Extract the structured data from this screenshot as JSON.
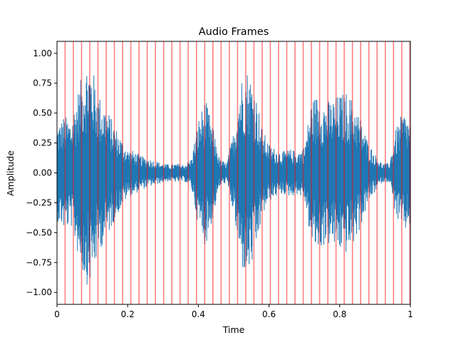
{
  "chart_data": {
    "type": "line",
    "title": "Audio Frames",
    "xlabel": "Time",
    "ylabel": "Amplitude",
    "xlim": [
      0,
      1
    ],
    "ylim": [
      -1.1,
      1.1
    ],
    "x_ticks": [
      0,
      0.2,
      0.4,
      0.6,
      0.8,
      1.0
    ],
    "x_tick_labels": [
      "0",
      "0.2",
      "0.4",
      "0.6",
      "0.8",
      "1"
    ],
    "y_ticks": [
      -1.0,
      -0.75,
      -0.5,
      -0.25,
      0.0,
      0.25,
      0.5,
      0.75,
      1.0
    ],
    "y_tick_labels": [
      "−1.00",
      "−0.75",
      "−0.50",
      "−0.25",
      "0.00",
      "0.25",
      "0.50",
      "0.75",
      "1.00"
    ],
    "grid": false,
    "series": [
      {
        "color": "#1f77b4",
        "envelope": {
          "t": [
            0.0,
            0.02,
            0.04,
            0.06,
            0.08,
            0.09,
            0.1,
            0.12,
            0.14,
            0.16,
            0.18,
            0.2,
            0.22,
            0.24,
            0.26,
            0.28,
            0.3,
            0.32,
            0.34,
            0.36,
            0.38,
            0.4,
            0.42,
            0.44,
            0.46,
            0.48,
            0.5,
            0.52,
            0.54,
            0.56,
            0.58,
            0.6,
            0.62,
            0.64,
            0.66,
            0.68,
            0.7,
            0.72,
            0.74,
            0.76,
            0.78,
            0.8,
            0.82,
            0.84,
            0.86,
            0.88,
            0.9,
            0.92,
            0.94,
            0.96,
            0.98,
            1.0
          ],
          "amplitude": [
            0.4,
            0.48,
            0.45,
            0.7,
            0.92,
            0.95,
            0.88,
            0.65,
            0.55,
            0.42,
            0.3,
            0.2,
            0.18,
            0.14,
            0.12,
            0.1,
            0.08,
            0.07,
            0.08,
            0.07,
            0.12,
            0.45,
            0.62,
            0.4,
            0.12,
            0.08,
            0.35,
            0.8,
            0.88,
            0.72,
            0.38,
            0.24,
            0.2,
            0.18,
            0.2,
            0.18,
            0.22,
            0.62,
            0.66,
            0.6,
            0.62,
            0.66,
            0.68,
            0.6,
            0.45,
            0.26,
            0.16,
            0.08,
            0.08,
            0.38,
            0.52,
            0.44
          ]
        }
      }
    ],
    "frame_boundaries": {
      "color": "#ff0000",
      "count": 43,
      "start": 0.023,
      "interval": 0.02323
    }
  }
}
